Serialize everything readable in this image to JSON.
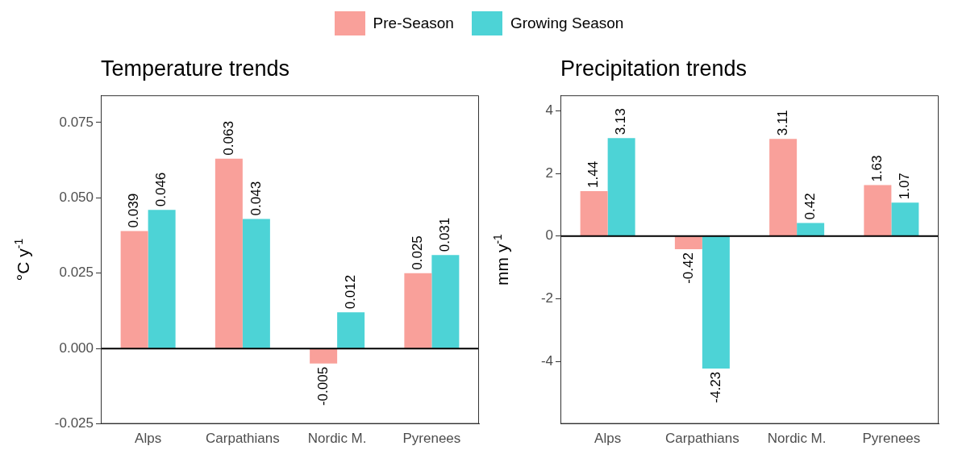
{
  "chart_data": [
    {
      "type": "bar",
      "title": "Temperature trends",
      "ylabel": "°C y$^{-1}$",
      "categories": [
        "Alps",
        "Carpathians",
        "Nordic M.",
        "Pyrenees"
      ],
      "series": [
        {
          "name": "Pre-Season",
          "color": "#f9a09a",
          "values": [
            0.039,
            0.063,
            -0.005,
            0.025
          ]
        },
        {
          "name": "Growing Season",
          "color": "#4dd3d6",
          "values": [
            0.046,
            0.043,
            0.012,
            0.031
          ]
        }
      ],
      "ylim": [
        -0.025,
        0.084
      ],
      "yticks": [
        {
          "value": -0.025,
          "label": "-0.025"
        },
        {
          "value": 0,
          "label": "0.000"
        },
        {
          "value": 0.025,
          "label": "0.025"
        },
        {
          "value": 0.05,
          "label": "0.050"
        },
        {
          "value": 0.075,
          "label": "0.075"
        }
      ],
      "ref_lines": [
        {
          "axis": "y",
          "value": 0,
          "color": "#000000"
        }
      ],
      "data_labels": true,
      "grid": false,
      "legend": "top"
    },
    {
      "type": "bar",
      "title": "Precipitation trends",
      "ylabel": "mm y$^{-1}$",
      "categories": [
        "Alps",
        "Carpathians",
        "Nordic M.",
        "Pyrenees"
      ],
      "series": [
        {
          "name": "Pre-Season",
          "color": "#f9a09a",
          "values": [
            1.44,
            -0.42,
            3.11,
            1.63
          ]
        },
        {
          "name": "Growing Season",
          "color": "#4dd3d6",
          "values": [
            3.13,
            -4.23,
            0.42,
            1.07
          ]
        }
      ],
      "ylim": [
        -6.0,
        4.5
      ],
      "yticks": [
        -4,
        -2,
        0,
        2,
        4
      ],
      "ref_lines": [
        {
          "axis": "y",
          "value": 0,
          "color": "#000000"
        }
      ],
      "data_labels": true,
      "grid": false,
      "legend": "top"
    }
  ]
}
